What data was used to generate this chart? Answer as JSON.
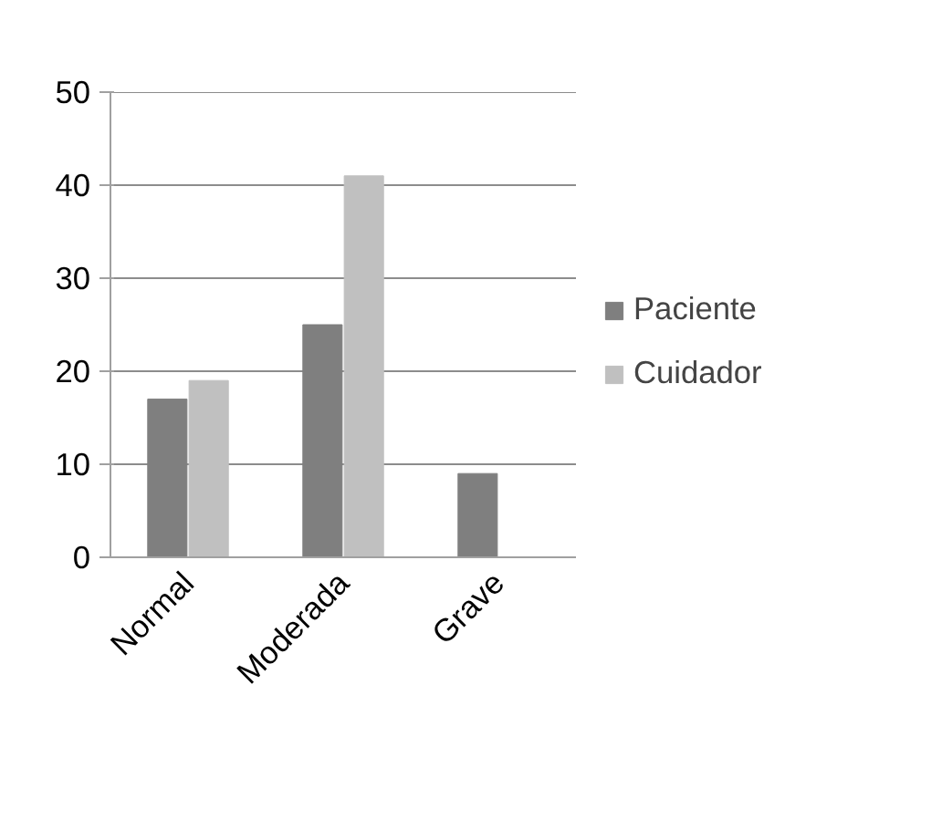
{
  "chart_data": {
    "type": "bar",
    "categories": [
      "Normal",
      "Moderada",
      "Grave"
    ],
    "series": [
      {
        "name": "Paciente",
        "color": "#7f7f7f",
        "values": [
          17,
          25,
          9
        ]
      },
      {
        "name": "Cuidador",
        "color": "#c0c0c0",
        "values": [
          19,
          41,
          0
        ]
      }
    ],
    "ylim": [
      0,
      50
    ],
    "yticks": [
      0,
      10,
      20,
      30,
      40,
      50
    ],
    "grid": "y",
    "legend": "right"
  }
}
